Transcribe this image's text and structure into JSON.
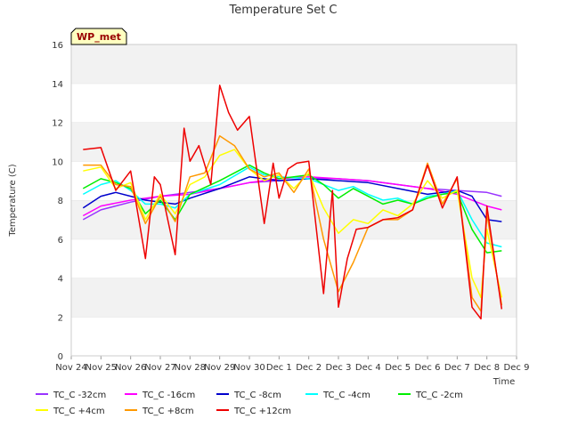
{
  "chart_data": {
    "type": "line",
    "title": "Temperature Set C",
    "xlabel": "Time",
    "ylabel": "Temperature (C)",
    "ylim": [
      0,
      16
    ],
    "yticks": [
      0,
      2,
      4,
      6,
      8,
      10,
      12,
      14,
      16
    ],
    "x_ticks": [
      "Nov 24",
      "Nov 25",
      "Nov 26",
      "Nov 27",
      "Nov 28",
      "Nov 29",
      "Nov 30",
      "Dec 1",
      "Dec 2",
      "Dec 3",
      "Dec 4",
      "Dec 5",
      "Dec 6",
      "Dec 7",
      "Dec 8",
      "Dec 9"
    ],
    "xlim_days": [
      0,
      15
    ],
    "grid": "horizontal bands",
    "legend_position": "bottom",
    "badge": {
      "text": "WP_met",
      "text_color": "#990000",
      "bg_color": "#ffffc0"
    },
    "series": [
      {
        "name": "TC_C -32cm",
        "color": "#9933ff",
        "x": [
          0.4,
          1,
          2,
          3,
          4,
          5,
          6,
          7,
          8,
          9,
          10,
          11,
          12,
          13,
          14,
          14.5
        ],
        "y": [
          7.0,
          7.5,
          7.9,
          8.2,
          8.4,
          8.6,
          8.9,
          9.0,
          9.1,
          9.1,
          9.0,
          8.8,
          8.6,
          8.5,
          8.4,
          8.2
        ]
      },
      {
        "name": "TC_C -16cm",
        "color": "#ff00ff",
        "x": [
          0.4,
          1,
          2,
          3,
          4,
          5,
          6,
          7,
          8,
          9,
          10,
          11,
          12,
          13,
          14,
          14.5
        ],
        "y": [
          7.2,
          7.7,
          8.0,
          8.2,
          8.3,
          8.6,
          8.9,
          9.1,
          9.2,
          9.1,
          9.0,
          8.8,
          8.6,
          8.3,
          7.7,
          7.5
        ]
      },
      {
        "name": "TC_C -8cm",
        "color": "#0000cc",
        "x": [
          0.4,
          1,
          1.5,
          2,
          2.5,
          3,
          3.5,
          4,
          5,
          6,
          7,
          8,
          9,
          10,
          11,
          12,
          13,
          13.5,
          14,
          14.5
        ],
        "y": [
          7.6,
          8.2,
          8.4,
          8.2,
          8.0,
          7.9,
          7.8,
          8.1,
          8.6,
          9.2,
          9.0,
          9.1,
          9.0,
          8.9,
          8.6,
          8.3,
          8.5,
          8.2,
          7.0,
          6.9
        ]
      },
      {
        "name": "TC_C -4cm",
        "color": "#00ffff",
        "x": [
          0.4,
          1,
          1.5,
          2,
          2.5,
          3,
          3.5,
          4,
          5,
          6,
          6.5,
          7,
          8,
          9,
          9.5,
          10,
          10.5,
          11,
          11.5,
          12,
          12.5,
          13,
          13.5,
          14,
          14.5
        ],
        "y": [
          8.3,
          8.8,
          9.0,
          8.5,
          7.8,
          7.8,
          7.6,
          8.3,
          8.8,
          9.7,
          9.3,
          9.2,
          9.1,
          8.5,
          8.7,
          8.3,
          8.0,
          8.1,
          7.8,
          8.2,
          8.3,
          8.5,
          7.0,
          5.8,
          5.6
        ]
      },
      {
        "name": "TC_C -2cm",
        "color": "#00ee00",
        "x": [
          0.4,
          1,
          1.5,
          2,
          2.5,
          3,
          3.5,
          4,
          5,
          6,
          6.5,
          7,
          8,
          8.5,
          9,
          9.5,
          10,
          10.5,
          11,
          11.5,
          12,
          12.5,
          13,
          13.5,
          14,
          14.5
        ],
        "y": [
          8.6,
          9.1,
          8.9,
          8.6,
          7.3,
          8.0,
          7.0,
          8.3,
          9.0,
          9.8,
          9.4,
          9.1,
          9.3,
          8.8,
          8.1,
          8.6,
          8.2,
          7.8,
          8.0,
          7.8,
          8.1,
          8.3,
          8.4,
          6.5,
          5.3,
          5.4
        ]
      },
      {
        "name": "TC_C +4cm",
        "color": "#ffff00",
        "x": [
          0.4,
          1,
          1.5,
          2,
          2.5,
          3,
          3.5,
          4,
          4.5,
          5,
          5.5,
          6,
          6.5,
          7,
          7.5,
          8,
          8.5,
          9,
          9.5,
          10,
          10.5,
          11,
          11.5,
          12,
          12.5,
          13,
          13.5,
          13.8,
          14,
          14.5
        ],
        "y": [
          9.5,
          9.7,
          8.6,
          8.9,
          7.0,
          8.3,
          7.3,
          8.8,
          9.2,
          10.3,
          10.6,
          9.6,
          9.0,
          9.3,
          8.6,
          9.4,
          7.6,
          6.3,
          7.0,
          6.8,
          7.5,
          7.2,
          7.8,
          9.0,
          8.1,
          8.5,
          4.0,
          3.0,
          6.5,
          3.0
        ]
      },
      {
        "name": "TC_C +8cm",
        "color": "#ff9900",
        "x": [
          0.4,
          1,
          1.5,
          2,
          2.5,
          3,
          3.5,
          4,
          4.5,
          5,
          5.5,
          6,
          6.5,
          7,
          7.5,
          8,
          8.5,
          9,
          9.5,
          10,
          10.5,
          11,
          11.5,
          12,
          12.5,
          13,
          13.5,
          13.8,
          14,
          14.5
        ],
        "y": [
          9.8,
          9.8,
          8.8,
          8.7,
          6.8,
          8.2,
          6.9,
          9.2,
          9.4,
          11.3,
          10.8,
          9.6,
          9.2,
          9.4,
          8.4,
          9.6,
          6.0,
          3.3,
          4.8,
          6.6,
          7.0,
          7.0,
          7.5,
          9.9,
          7.8,
          9.1,
          3.0,
          2.3,
          7.3,
          2.6
        ]
      },
      {
        "name": "TC_C +12cm",
        "color": "#ee0000",
        "x": [
          0.4,
          1,
          1.5,
          2,
          2.5,
          2.8,
          3,
          3.5,
          3.8,
          4,
          4.3,
          4.7,
          5,
          5.3,
          5.6,
          6,
          6.5,
          6.8,
          7,
          7.3,
          7.6,
          8,
          8.5,
          8.8,
          9,
          9.3,
          9.6,
          10,
          10.5,
          11,
          11.5,
          12,
          12.5,
          13,
          13.5,
          13.8,
          14,
          14.5
        ],
        "y": [
          10.6,
          10.7,
          8.5,
          9.5,
          5.0,
          9.2,
          8.8,
          5.2,
          11.7,
          10.0,
          10.8,
          8.8,
          13.9,
          12.5,
          11.6,
          12.3,
          6.8,
          9.9,
          8.1,
          9.6,
          9.9,
          10.0,
          3.2,
          8.5,
          2.5,
          5.0,
          6.5,
          6.6,
          7.0,
          7.1,
          7.5,
          9.8,
          7.6,
          9.2,
          2.5,
          1.9,
          7.7,
          2.4
        ]
      }
    ]
  }
}
